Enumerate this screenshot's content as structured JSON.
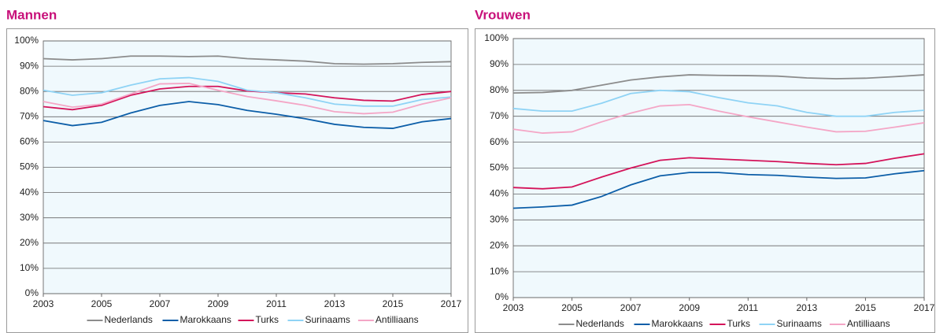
{
  "chart_data": [
    {
      "type": "line",
      "title": "Mannen",
      "x": [
        2003,
        2004,
        2005,
        2006,
        2007,
        2008,
        2009,
        2010,
        2011,
        2012,
        2013,
        2014,
        2015,
        2016,
        2017
      ],
      "xlim": [
        2003,
        2017
      ],
      "xticks": [
        2003,
        2005,
        2007,
        2009,
        2011,
        2013,
        2015,
        2017
      ],
      "ylim": [
        0,
        100
      ],
      "yticks": [
        {
          "value": 0,
          "label": "0%"
        },
        {
          "value": 10,
          "label": "10%"
        },
        {
          "value": 20,
          "label": "20%"
        },
        {
          "value": 30,
          "label": "30%"
        },
        {
          "value": 40,
          "label": "40%"
        },
        {
          "value": 50,
          "label": "50%"
        },
        {
          "value": 60,
          "label": "60%"
        },
        {
          "value": 70,
          "label": "70%"
        },
        {
          "value": 80,
          "label": "80%"
        },
        {
          "value": 90,
          "label": "90%"
        },
        {
          "value": 100,
          "label": "100%"
        }
      ],
      "grid": true,
      "legend": "bottom",
      "series": [
        {
          "name": "Nederlands",
          "color": "#8c8c8c",
          "values": [
            93,
            92.5,
            93,
            94,
            94,
            93.8,
            94,
            93,
            92.5,
            92,
            91,
            90.8,
            91,
            91.5,
            91.8
          ]
        },
        {
          "name": "Marokkaans",
          "color": "#0c5ea8",
          "values": [
            68.5,
            66.5,
            67.8,
            71.5,
            74.5,
            76,
            74.8,
            72.5,
            71,
            69.2,
            67,
            65.8,
            65.4,
            68,
            69.3
          ]
        },
        {
          "name": "Turks",
          "color": "#d4145a",
          "values": [
            74,
            72.8,
            74.5,
            78.5,
            81,
            82,
            82,
            80.2,
            79.5,
            79,
            77.5,
            76.5,
            76.2,
            78.8,
            80
          ]
        },
        {
          "name": "Surinaams",
          "color": "#8fd3f5",
          "values": [
            80.5,
            78.5,
            79.5,
            82.5,
            85,
            85.5,
            84,
            80.5,
            79.5,
            77.5,
            75,
            74.2,
            74.2,
            76.8,
            77.8
          ]
        },
        {
          "name": "Antilliaans",
          "color": "#f4a6c6",
          "values": [
            76,
            73.8,
            75,
            79,
            83,
            83.2,
            80.5,
            78,
            76.3,
            74.5,
            72,
            71.2,
            71.8,
            75,
            77.5
          ]
        }
      ]
    },
    {
      "type": "line",
      "title": "Vrouwen",
      "x": [
        2003,
        2004,
        2005,
        2006,
        2007,
        2008,
        2009,
        2010,
        2011,
        2012,
        2013,
        2014,
        2015,
        2016,
        2017
      ],
      "xlim": [
        2003,
        2017
      ],
      "xticks": [
        2003,
        2005,
        2007,
        2009,
        2011,
        2013,
        2015,
        2017
      ],
      "ylim": [
        0,
        100
      ],
      "yticks": [
        {
          "value": 0,
          "label": "0%"
        },
        {
          "value": 10,
          "label": "10%"
        },
        {
          "value": 20,
          "label": "20%"
        },
        {
          "value": 30,
          "label": "30%"
        },
        {
          "value": 40,
          "label": "40%"
        },
        {
          "value": 50,
          "label": "50%"
        },
        {
          "value": 60,
          "label": "60%"
        },
        {
          "value": 70,
          "label": "70%"
        },
        {
          "value": 80,
          "label": "80%"
        },
        {
          "value": 90,
          "label": "90%"
        },
        {
          "value": 100,
          "label": "100%"
        }
      ],
      "grid": true,
      "legend": "bottom",
      "series": [
        {
          "name": "Nederlands",
          "color": "#8c8c8c",
          "values": [
            79,
            79.2,
            80,
            82,
            84,
            85.2,
            86,
            85.8,
            85.7,
            85.5,
            84.8,
            84.5,
            84.7,
            85.3,
            86
          ]
        },
        {
          "name": "Marokkaans",
          "color": "#0c5ea8",
          "values": [
            34.5,
            35,
            35.7,
            39,
            43.5,
            47,
            48.3,
            48.3,
            47.5,
            47.2,
            46.5,
            46,
            46.2,
            47.8,
            49
          ]
        },
        {
          "name": "Turks",
          "color": "#d4145a",
          "values": [
            42.5,
            42,
            42.7,
            46.5,
            50,
            53,
            54,
            53.5,
            53,
            52.5,
            51.8,
            51.3,
            51.8,
            53.8,
            55.5
          ]
        },
        {
          "name": "Surinaams",
          "color": "#8fd3f5",
          "values": [
            73,
            72,
            72,
            75,
            78.8,
            80,
            79.5,
            77.2,
            75.2,
            74,
            71.5,
            70,
            70,
            71.5,
            72.3
          ]
        },
        {
          "name": "Antilliaans",
          "color": "#f4a6c6",
          "values": [
            65,
            63.5,
            64,
            67.8,
            71.2,
            74,
            74.5,
            72,
            69.8,
            67.8,
            65.8,
            64,
            64.2,
            65.8,
            67.5
          ]
        }
      ]
    }
  ]
}
